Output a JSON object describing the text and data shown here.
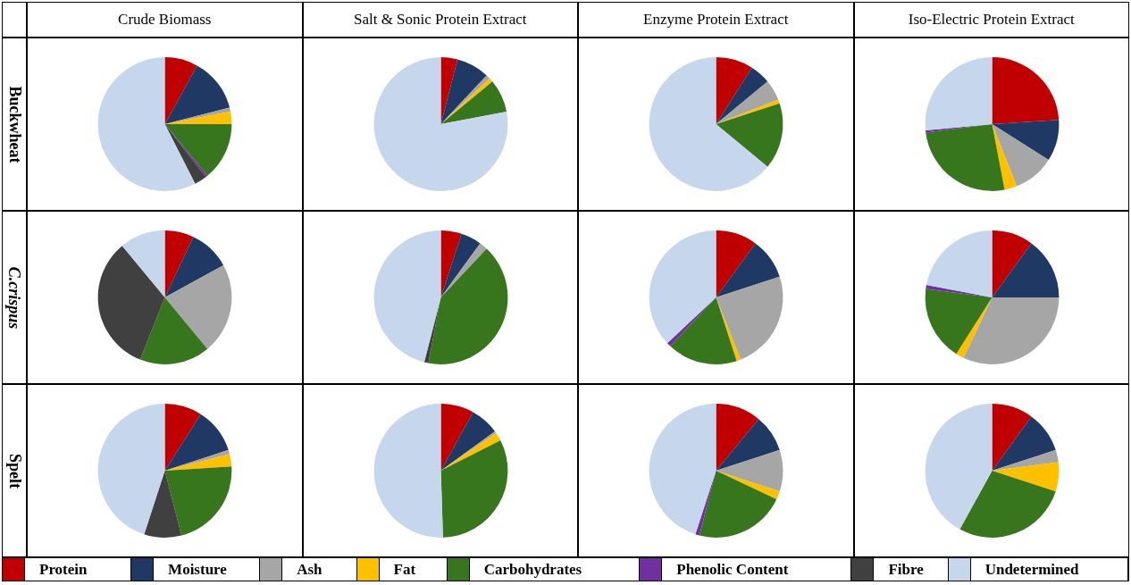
{
  "chart_data": [
    {
      "type": "pie",
      "title": "Crude Biomass",
      "ylabel": "Buckwheat",
      "legend": "bottom",
      "categories": [
        "Protein",
        "Moisture",
        "Ash",
        "Fat",
        "Carbohydrates",
        "Phenolic Content",
        "Fibre",
        "Undetermined"
      ],
      "values": [
        8,
        13,
        1,
        3,
        14,
        0.5,
        3,
        57.5
      ],
      "colors": [
        "#c00000",
        "#1f3864",
        "#a6a6a6",
        "#ffc000",
        "#38761d",
        "#7030a0",
        "#404040",
        "#c6d6ec"
      ]
    },
    {
      "type": "pie",
      "title": "Salt & Sonic Protein Extract",
      "categories": [
        null,
        null,
        null,
        null,
        null,
        null,
        null,
        null
      ],
      "values": [
        4,
        8,
        1,
        1,
        8,
        0,
        0,
        78
      ],
      "colors": [
        "#c00000",
        "#1f3864",
        "#a6a6a6",
        "#ffc000",
        "#38761d",
        "#7030a0",
        "#404040",
        "#c6d6ec"
      ]
    },
    {
      "type": "pie",
      "title": "Enzyme Protein Extract",
      "categories": [
        null,
        null,
        null,
        null,
        null,
        null,
        null,
        null
      ],
      "values": [
        9,
        5,
        5,
        1,
        16,
        0,
        0,
        64
      ],
      "colors": [
        "#c00000",
        "#1f3864",
        "#a6a6a6",
        "#ffc000",
        "#38761d",
        "#7030a0",
        "#404040",
        "#c6d6ec"
      ]
    },
    {
      "type": "pie",
      "title": "Iso-Electric Protein Extract",
      "categories": [
        null,
        null,
        null,
        null,
        null,
        null,
        null,
        null
      ],
      "values": [
        24,
        10,
        10,
        3,
        26,
        0.5,
        0,
        26.5
      ],
      "colors": [
        "#c00000",
        "#1f3864",
        "#a6a6a6",
        "#ffc000",
        "#38761d",
        "#7030a0",
        "#404040",
        "#c6d6ec"
      ]
    },
    {
      "type": "pie",
      "ylabel": "C.crispus",
      "categories": [
        null,
        null,
        null,
        null,
        null,
        null,
        null,
        null
      ],
      "values": [
        7,
        10,
        22,
        0,
        17,
        0,
        33,
        11
      ],
      "colors": [
        "#c00000",
        "#1f3864",
        "#a6a6a6",
        "#ffc000",
        "#38761d",
        "#7030a0",
        "#404040",
        "#c6d6ec"
      ]
    },
    {
      "type": "pie",
      "categories": [
        null,
        null,
        null,
        null,
        null,
        null,
        null,
        null
      ],
      "values": [
        5,
        5,
        2,
        0,
        41,
        0,
        1,
        46
      ],
      "colors": [
        "#c00000",
        "#1f3864",
        "#a6a6a6",
        "#ffc000",
        "#38761d",
        "#7030a0",
        "#404040",
        "#c6d6ec"
      ]
    },
    {
      "type": "pie",
      "categories": [
        null,
        null,
        null,
        null,
        null,
        null,
        null,
        null
      ],
      "values": [
        10,
        10,
        24,
        1,
        17,
        1,
        0,
        37
      ],
      "colors": [
        "#c00000",
        "#1f3864",
        "#a6a6a6",
        "#ffc000",
        "#38761d",
        "#7030a0",
        "#404040",
        "#c6d6ec"
      ]
    },
    {
      "type": "pie",
      "categories": [
        null,
        null,
        null,
        null,
        null,
        null,
        null,
        null
      ],
      "values": [
        10,
        15,
        32,
        2,
        18,
        1,
        0,
        22
      ],
      "colors": [
        "#c00000",
        "#1f3864",
        "#a6a6a6",
        "#ffc000",
        "#38761d",
        "#7030a0",
        "#404040",
        "#c6d6ec"
      ]
    },
    {
      "type": "pie",
      "ylabel": "Spelt",
      "categories": [
        null,
        null,
        null,
        null,
        null,
        null,
        null,
        null
      ],
      "values": [
        9,
        11,
        1,
        3,
        22,
        0,
        9,
        45
      ],
      "colors": [
        "#c00000",
        "#1f3864",
        "#a6a6a6",
        "#ffc000",
        "#38761d",
        "#7030a0",
        "#404040",
        "#c6d6ec"
      ]
    },
    {
      "type": "pie",
      "categories": [
        null,
        null,
        null,
        null,
        null,
        null,
        null,
        null
      ],
      "values": [
        8,
        7,
        0.5,
        2,
        32,
        0,
        0,
        50.5
      ],
      "colors": [
        "#c00000",
        "#1f3864",
        "#a6a6a6",
        "#ffc000",
        "#38761d",
        "#7030a0",
        "#404040",
        "#c6d6ec"
      ]
    },
    {
      "type": "pie",
      "categories": [
        null,
        null,
        null,
        null,
        null,
        null,
        null,
        null
      ],
      "values": [
        11,
        9,
        10,
        2,
        22,
        1,
        0,
        45
      ],
      "colors": [
        "#c00000",
        "#1f3864",
        "#a6a6a6",
        "#ffc000",
        "#38761d",
        "#7030a0",
        "#404040",
        "#c6d6ec"
      ]
    },
    {
      "type": "pie",
      "categories": [
        null,
        null,
        null,
        null,
        null,
        null,
        null,
        null
      ],
      "values": [
        10,
        10,
        3,
        7,
        28,
        0,
        0,
        42
      ],
      "colors": [
        "#c00000",
        "#1f3864",
        "#a6a6a6",
        "#ffc000",
        "#38761d",
        "#7030a0",
        "#404040",
        "#c6d6ec"
      ]
    }
  ]
}
